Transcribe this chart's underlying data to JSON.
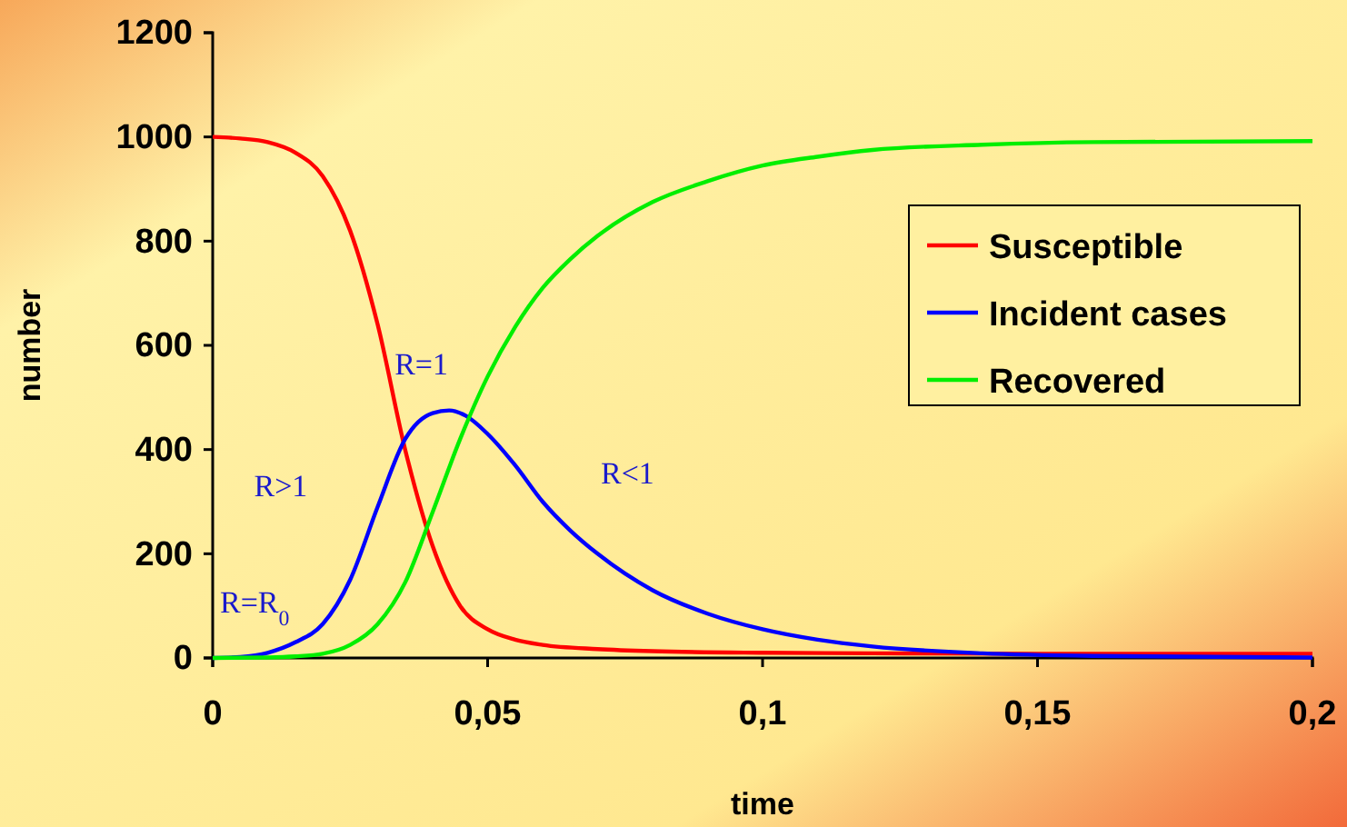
{
  "chart_data": {
    "type": "line",
    "xlabel": "time",
    "ylabel": "number",
    "xlim": [
      0,
      0.2
    ],
    "ylim": [
      0,
      1200
    ],
    "xticks": [
      0,
      {
        "value": 0.05,
        "label": "0,05"
      },
      {
        "value": 0.1,
        "label": "0,1"
      },
      {
        "value": 0.15,
        "label": "0,15"
      },
      {
        "value": 0.2,
        "label": "0,2"
      }
    ],
    "yticks": [
      0,
      200,
      400,
      600,
      800,
      1000,
      1200
    ],
    "grid": false,
    "legend": "top right",
    "marker": "none",
    "line_style": "solid",
    "series": [
      {
        "name": "Susceptible",
        "color": "#ff0000",
        "x": [
          0,
          0.005,
          0.01,
          0.015,
          0.02,
          0.025,
          0.03,
          0.035,
          0.04,
          0.045,
          0.05,
          0.055,
          0.06,
          0.07,
          0.08,
          0.1,
          0.12,
          0.15,
          0.2
        ],
        "values": [
          1000,
          997,
          990,
          970,
          925,
          820,
          640,
          400,
          215,
          100,
          55,
          35,
          25,
          17,
          13,
          10,
          9,
          8,
          8
        ]
      },
      {
        "name": "Incident cases",
        "color": "#0000ff",
        "x": [
          0,
          0.005,
          0.01,
          0.015,
          0.02,
          0.025,
          0.03,
          0.035,
          0.04,
          0.043,
          0.046,
          0.05,
          0.055,
          0.06,
          0.065,
          0.07,
          0.08,
          0.09,
          0.1,
          0.11,
          0.12,
          0.14,
          0.16,
          0.2
        ],
        "values": [
          0,
          2,
          10,
          30,
          65,
          150,
          290,
          420,
          470,
          475,
          465,
          430,
          370,
          300,
          245,
          200,
          130,
          85,
          55,
          35,
          22,
          9,
          4,
          1
        ]
      },
      {
        "name": "Recovered",
        "color": "#00ee00",
        "x": [
          0,
          0.01,
          0.015,
          0.02,
          0.025,
          0.03,
          0.035,
          0.04,
          0.045,
          0.05,
          0.055,
          0.06,
          0.065,
          0.07,
          0.08,
          0.09,
          0.1,
          0.11,
          0.12,
          0.14,
          0.16,
          0.2
        ],
        "values": [
          0,
          1,
          3,
          8,
          25,
          65,
          145,
          280,
          420,
          540,
          635,
          710,
          765,
          810,
          875,
          915,
          945,
          962,
          975,
          985,
          990,
          992
        ]
      }
    ],
    "annotations": [
      {
        "text": "R=R$_{0}$",
        "x": 0,
        "y": 0
      },
      {
        "text": "R>1",
        "x": 0.03,
        "y": 300
      },
      {
        "text": "R=1",
        "x": 0.043,
        "y": 475
      },
      {
        "text": "R<1",
        "x": 0.06,
        "y": 300
      }
    ]
  }
}
